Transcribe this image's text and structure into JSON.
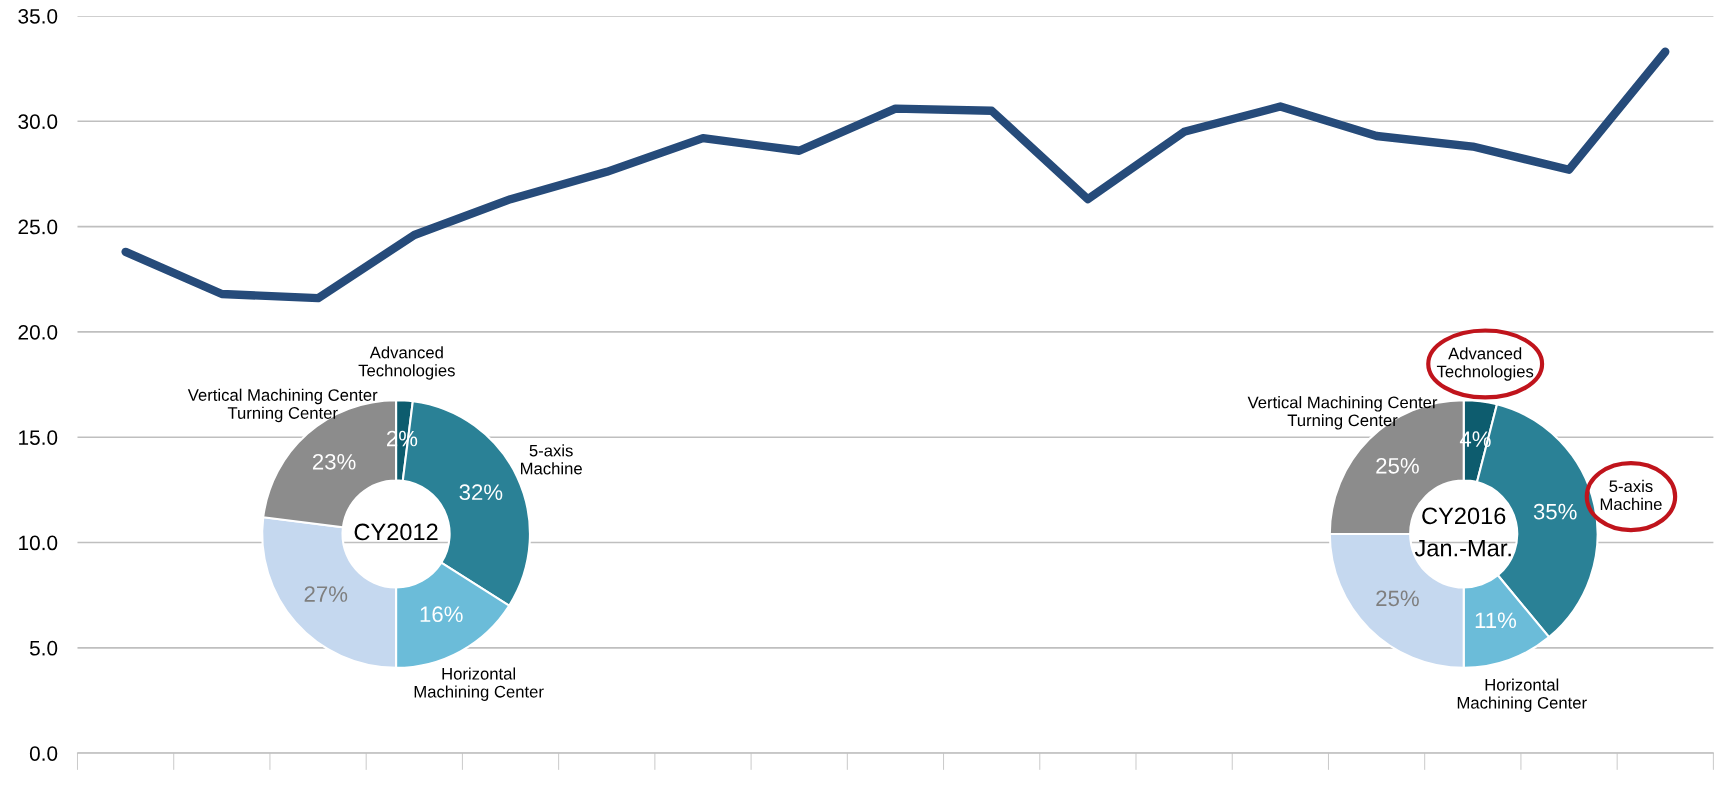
{
  "chart_data": [
    {
      "type": "line",
      "categories": [
        null,
        null,
        null,
        null,
        null,
        null,
        null,
        null,
        null,
        null,
        null,
        null,
        null,
        null,
        null,
        null,
        null
      ],
      "series": [
        {
          "color": "#264b7a",
          "values": [
            23.8,
            21.8,
            21.6,
            24.6,
            26.3,
            27.6,
            29.2,
            28.6,
            30.6,
            30.5,
            26.3,
            29.5,
            30.7,
            29.3,
            28.8,
            27.7,
            33.3
          ]
        }
      ],
      "ylim": [
        0,
        35
      ],
      "yticks": [
        {
          "value": 0,
          "label": "0.0"
        },
        {
          "value": 5,
          "label": "5.0"
        },
        {
          "value": 10,
          "label": "10.0"
        },
        {
          "value": 15,
          "label": "15.0"
        },
        {
          "value": 20,
          "label": "20.0"
        },
        {
          "value": 25,
          "label": "25.0"
        },
        {
          "value": 30,
          "label": "30.0"
        },
        {
          "value": 35,
          "label": "35.0"
        }
      ],
      "grid": "y",
      "marker": "none",
      "line_style": "solid"
    },
    {
      "type": "donut",
      "title": "CY2012",
      "categories": [
        "Advanced\nTechnologies",
        "5-axis\nMachine",
        "Horizontal\nMachining Center",
        null,
        "Vertical Machining Center\nTurning Center"
      ],
      "values": [
        2,
        32,
        16,
        27,
        23
      ],
      "colors": [
        "#0d5c6e",
        "#2a8196",
        "#6bbcd9",
        "#c5d8ef",
        "#8c8c8c"
      ],
      "value_labels": [
        "2%",
        "32%",
        "16%",
        "27%",
        "23%"
      ]
    },
    {
      "type": "donut",
      "title": "CY2016\nJan.-Mar.",
      "categories": [
        "Advanced\nTechnologies",
        "5-axis\nMachine",
        "Horizontal\nMachining Center",
        null,
        "Vertical Machining Center\nTurning Center"
      ],
      "values": [
        4,
        35,
        11,
        25,
        25
      ],
      "colors": [
        "#0d5c6e",
        "#2a8196",
        "#6bbcd9",
        "#c5d8ef",
        "#8c8c8c"
      ],
      "value_labels": [
        "4%",
        "35%",
        "11%",
        "25%",
        "25%"
      ]
    }
  ]
}
